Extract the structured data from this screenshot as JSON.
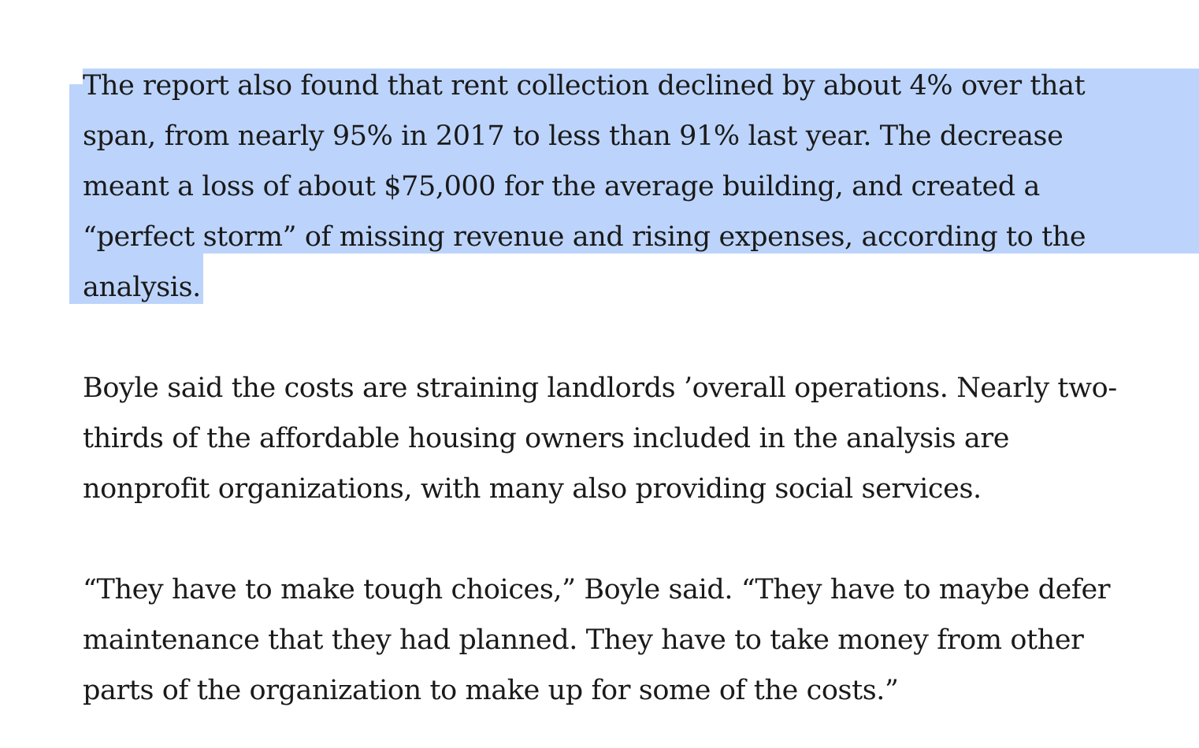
{
  "selection": {
    "color": "#bcd4fb"
  },
  "paragraphs": [
    {
      "selected": true,
      "lines": [
        "The report also found that rent collection declined by about 4% over that",
        "span, from nearly 95% in 2017 to less than 91% last year. The decrease",
        "meant a loss of about $75,000 for the average building, and created a",
        "“perfect storm” of missing revenue and rising expenses, according to the",
        "analysis."
      ]
    },
    {
      "selected": false,
      "lines": [
        "Boyle said the costs are straining landlords ’overall operations. Nearly two-",
        "thirds of the affordable housing owners included in the analysis are",
        "nonprofit organizations, with many also providing social services."
      ]
    },
    {
      "selected": false,
      "lines": [
        "“They have to make tough choices,” Boyle said. “They have to maybe defer",
        "maintenance that they had planned. They have to take money from other",
        "parts of the organization to make up for some of the costs.”"
      ]
    }
  ]
}
